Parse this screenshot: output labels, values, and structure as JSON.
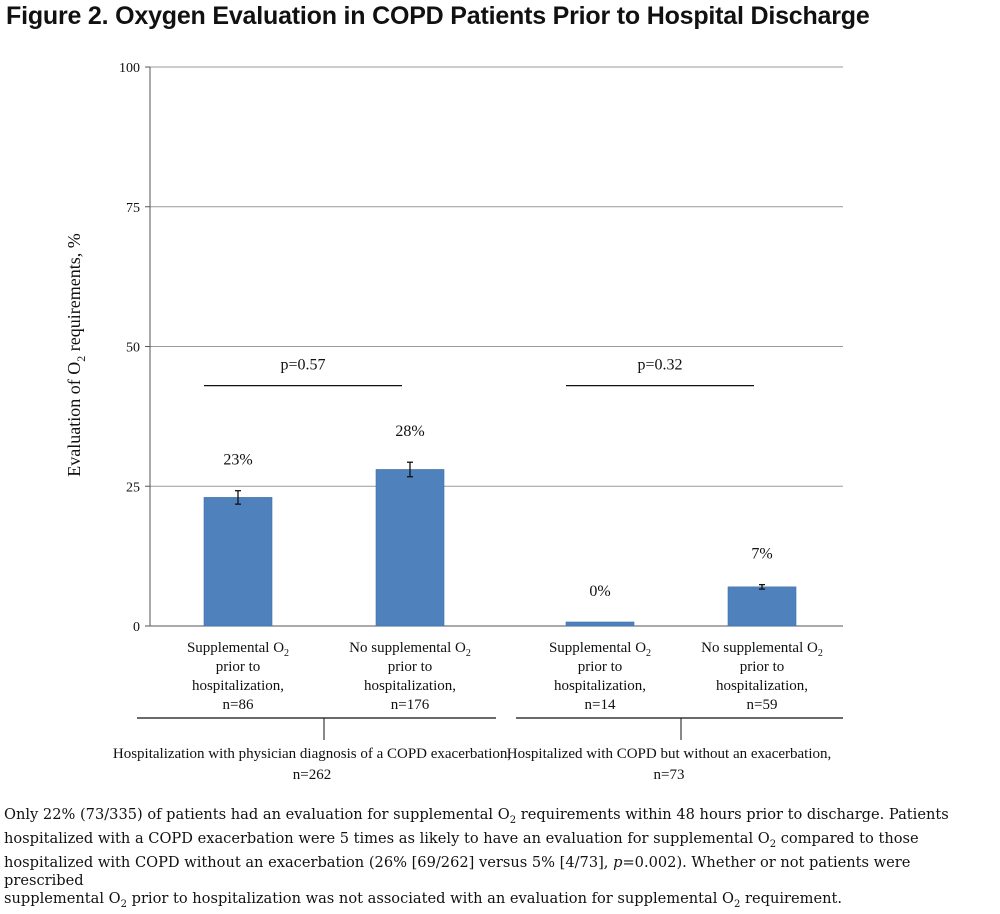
{
  "figure": {
    "title": "Figure 2. Oxygen Evaluation in COPD Patients Prior to Hospital Discharge"
  },
  "chart_data": {
    "type": "bar",
    "ylabel": "Evaluation of O",
    "ylabel_sub": "2",
    "ylabel_tail": " requirements, %",
    "ylim": [
      0,
      100
    ],
    "yticks": [
      "0",
      "25",
      "50",
      "75",
      "100"
    ],
    "ytick_values": [
      0,
      25,
      50,
      75,
      100
    ],
    "grid": true,
    "bar_color": "#4f81bd",
    "categories": [
      {
        "line1": "Supplemental O",
        "line1_sub": "2",
        "line2": "prior to",
        "line3": "hospitalization,",
        "line4": "n=86"
      },
      {
        "line1": "No supplemental O",
        "line1_sub": "2",
        "line2": "prior to",
        "line3": "hospitalization,",
        "line4": "n=176"
      },
      {
        "line1": "Supplemental O",
        "line1_sub": "2",
        "line2": "prior to",
        "line3": "hospitalization,",
        "line4": "n=14"
      },
      {
        "line1": "No supplemental O",
        "line1_sub": "2",
        "line2": "prior to",
        "line3": "hospitalization,",
        "line4": "n=59"
      }
    ],
    "values": [
      23,
      28,
      0,
      7
    ],
    "error": [
      1.2,
      1.3,
      0,
      0.4
    ],
    "data_labels": [
      "23%",
      "28%",
      "0%",
      "7%"
    ],
    "groups": [
      {
        "line1": "Hospitalization with physician diagnosis of a COPD exacerbation,",
        "line2": "n=262",
        "categories": [
          0,
          1
        ]
      },
      {
        "line1": "Hospitalized with COPD but without an exacerbation,",
        "line2": "n=73",
        "categories": [
          2,
          3
        ]
      }
    ],
    "annotations": [
      {
        "text": "p=0.57",
        "between": [
          0,
          1
        ],
        "y": 43
      },
      {
        "text": "p=0.32",
        "between": [
          2,
          3
        ],
        "y": 43
      }
    ]
  },
  "caption": {
    "l1a": "Only 22% (73/335) of patients had an evaluation for supplemental O",
    "l1s": "2",
    "l1b": " requirements within 48 hours prior to discharge. Patients",
    "l2a": "hospitalized with a COPD exacerbation were 5 times as likely to have an evaluation for supplemental O",
    "l2s": "2",
    "l2b": " compared to those",
    "l3a": "hospitalized with COPD without an exacerbation (26% [69/262] versus 5% [4/73], ",
    "l3i": "p",
    "l3b": "=0.002). Whether or not patients were prescribed",
    "l4a": "supplemental O",
    "l4s": "2",
    "l4b": " prior to hospitalization was not associated with an evaluation for supplemental O",
    "l4s2": "2",
    "l4b2": " requirement."
  }
}
